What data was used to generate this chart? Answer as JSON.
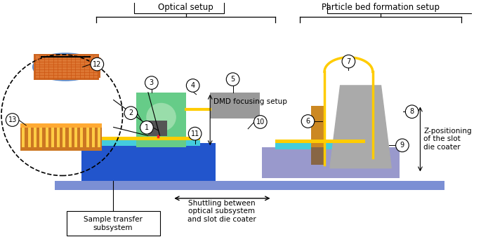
{
  "title_optical": "Optical setup",
  "title_particle": "Particle bed formation setup",
  "label_sample": "Sample transfer\nsubsystem",
  "label_shuttling": "Shuttling between\noptical subsystem\nand slot die coater",
  "label_dmd": "DMD focusing setup",
  "label_z": "Z-positioning\nof the slot\ndie coater",
  "bg_color": "#ffffff",
  "rail_color": "#7b8fd4",
  "stage_left_color": "#2255cc",
  "stage_right_color": "#9999cc",
  "cyan_color": "#44ccdd",
  "gold_color": "#ffcc00",
  "green_box_color": "#66cc88",
  "green_box_light": "#99ddaa",
  "gray_box_color": "#999999",
  "dark_gray_color": "#555555",
  "red_beam_color": "#ff2222",
  "yellow_fiber_color": "#ffcc00",
  "orange_slot_color": "#cc8822",
  "brown_slot_color": "#886644",
  "slot_die_color": "#aaaaaa",
  "blue_oval_color": "#5588cc",
  "orange_3d_color": "#cc7722",
  "orange_3d_top": "#ffaa33",
  "pillar_color": "#ffcc44"
}
